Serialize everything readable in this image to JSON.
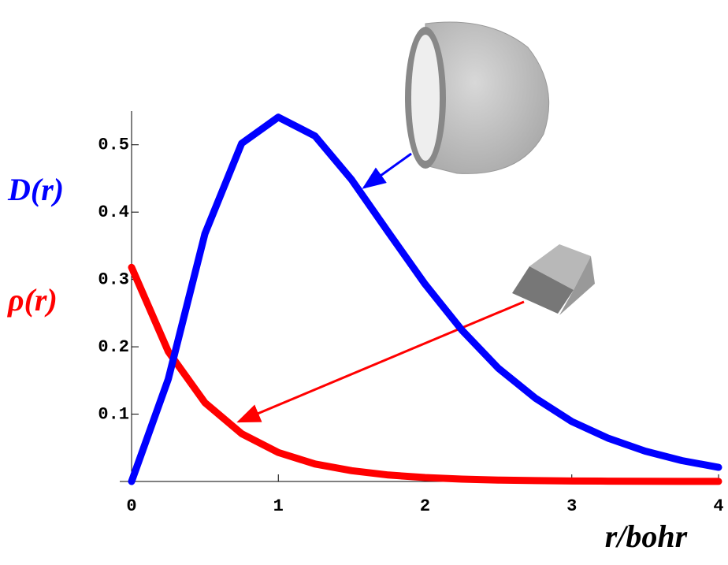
{
  "chart_data": {
    "type": "line",
    "x_label": "r/bohr",
    "x": [
      0,
      0.25,
      0.5,
      0.75,
      1,
      1.25,
      1.5,
      1.75,
      2,
      2.25,
      2.5,
      2.75,
      3,
      3.25,
      3.5,
      3.75,
      4
    ],
    "series": [
      {
        "name": "D(r)",
        "color": "#0000ff",
        "values": [
          0,
          0.152,
          0.368,
          0.502,
          0.541,
          0.513,
          0.448,
          0.37,
          0.293,
          0.225,
          0.168,
          0.124,
          0.089,
          0.064,
          0.045,
          0.031,
          0.021
        ]
      },
      {
        "name": "ρ(r)",
        "color": "#ff0000",
        "values": [
          0.318,
          0.193,
          0.117,
          0.071,
          0.043,
          0.026,
          0.016,
          0.0096,
          0.0058,
          0.0035,
          0.0021,
          0.0013,
          0.0008,
          0.0005,
          0.0003,
          0.0002,
          0.0001
        ]
      }
    ],
    "xlim": [
      0,
      4
    ],
    "xticks": [
      0,
      1,
      2,
      3,
      4
    ],
    "ylim": [
      0,
      0.55
    ],
    "yticks": [
      0.1,
      0.2,
      0.3,
      0.4,
      0.5
    ]
  }
}
